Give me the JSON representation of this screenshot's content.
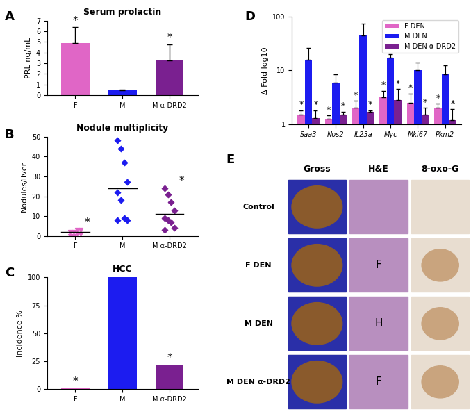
{
  "chart_data": [
    {
      "type": "bar",
      "panel": "A",
      "title": "Serum prolactin",
      "y_label": "PRL ng/mL",
      "categories": [
        "F",
        "M",
        "M α-DRD2"
      ],
      "values": [
        4.9,
        0.45,
        3.3
      ],
      "errors": [
        1.5,
        0.1,
        1.5
      ],
      "colors": [
        "#e066c6",
        "#1c1cf0",
        "#7a2090"
      ],
      "annotations": [
        "*",
        null,
        "*"
      ],
      "ylim": [
        0,
        7
      ],
      "yticks": [
        0,
        1,
        2,
        3,
        4,
        5,
        6,
        7
      ]
    },
    {
      "type": "scatter",
      "panel": "B",
      "title": "Nodule multiplicity",
      "y_label": "Nodules/liver",
      "series": [
        {
          "name": "F",
          "color": "#e066c6",
          "marker": "triangle",
          "values": [
            0,
            0,
            1,
            1,
            2,
            2,
            3,
            3
          ],
          "mean": 2,
          "annotation": "*"
        },
        {
          "name": "M",
          "color": "#1c1cf0",
          "marker": "diamond",
          "values": [
            48,
            44,
            37,
            27,
            22,
            18,
            9,
            8,
            8
          ],
          "mean": 24,
          "annotation": null
        },
        {
          "name": "M α-DRD2",
          "color": "#7a2090",
          "marker": "diamond",
          "values": [
            24,
            21,
            17,
            13,
            9,
            8,
            7,
            4,
            3
          ],
          "mean": 11,
          "annotation": "*"
        }
      ],
      "ylim": [
        0,
        50
      ],
      "yticks": [
        0,
        10,
        20,
        30,
        40,
        50
      ]
    },
    {
      "type": "bar",
      "panel": "C",
      "title": "HCC",
      "y_label": "Incidence %",
      "categories": [
        "F",
        "M",
        "M α-DRD2"
      ],
      "values": [
        1,
        100,
        22
      ],
      "colors": [
        "#e066c6",
        "#1c1cf0",
        "#7a2090"
      ],
      "annotations": [
        "*",
        null,
        "*"
      ],
      "ylim": [
        0,
        100
      ],
      "yticks": [
        0,
        25,
        50,
        75,
        100
      ]
    },
    {
      "type": "bar",
      "panel": "D",
      "y_label": "Δ Fold log10",
      "log": "y",
      "legend": "upper right",
      "categories": [
        "Saa3",
        "Nos2",
        "IL23a",
        "Myc",
        "Mki67",
        "Pkm2"
      ],
      "series": [
        {
          "name": "F DEN",
          "color": "#e066c6",
          "values": [
            1.5,
            1.25,
            2.0,
            3.2,
            2.5,
            2.0
          ],
          "errors": [
            0.3,
            0.2,
            0.7,
            1.0,
            1.2,
            0.4
          ],
          "annotation": "*"
        },
        {
          "name": "M DEN",
          "color": "#1c1cf0",
          "values": [
            16,
            6,
            45,
            17,
            10,
            8.5
          ],
          "errors": [
            10,
            2.5,
            30,
            3,
            4,
            4
          ],
          "annotation": null
        },
        {
          "name": "M DEN α-DRD2",
          "color": "#7a2090",
          "values": [
            1.3,
            1.5,
            1.7,
            2.8,
            1.5,
            1.2
          ],
          "errors": [
            0.5,
            0.2,
            0.1,
            1.7,
            0.5,
            0.7
          ],
          "annotation": "*"
        }
      ],
      "ylim": [
        1,
        100
      ],
      "yticks": [
        1,
        10,
        100
      ]
    },
    {
      "type": "image_grid",
      "panel": "E",
      "columns": [
        "Gross",
        "H&E",
        "8-oxo-G"
      ],
      "rows": [
        "Control",
        "F DEN",
        "M DEN",
        "M DEN α-DRD2"
      ],
      "cell_labels": [
        [
          null,
          null,
          null
        ],
        [
          null,
          "F",
          null
        ],
        [
          null,
          "H",
          null
        ],
        [
          null,
          "F",
          null
        ]
      ]
    }
  ]
}
